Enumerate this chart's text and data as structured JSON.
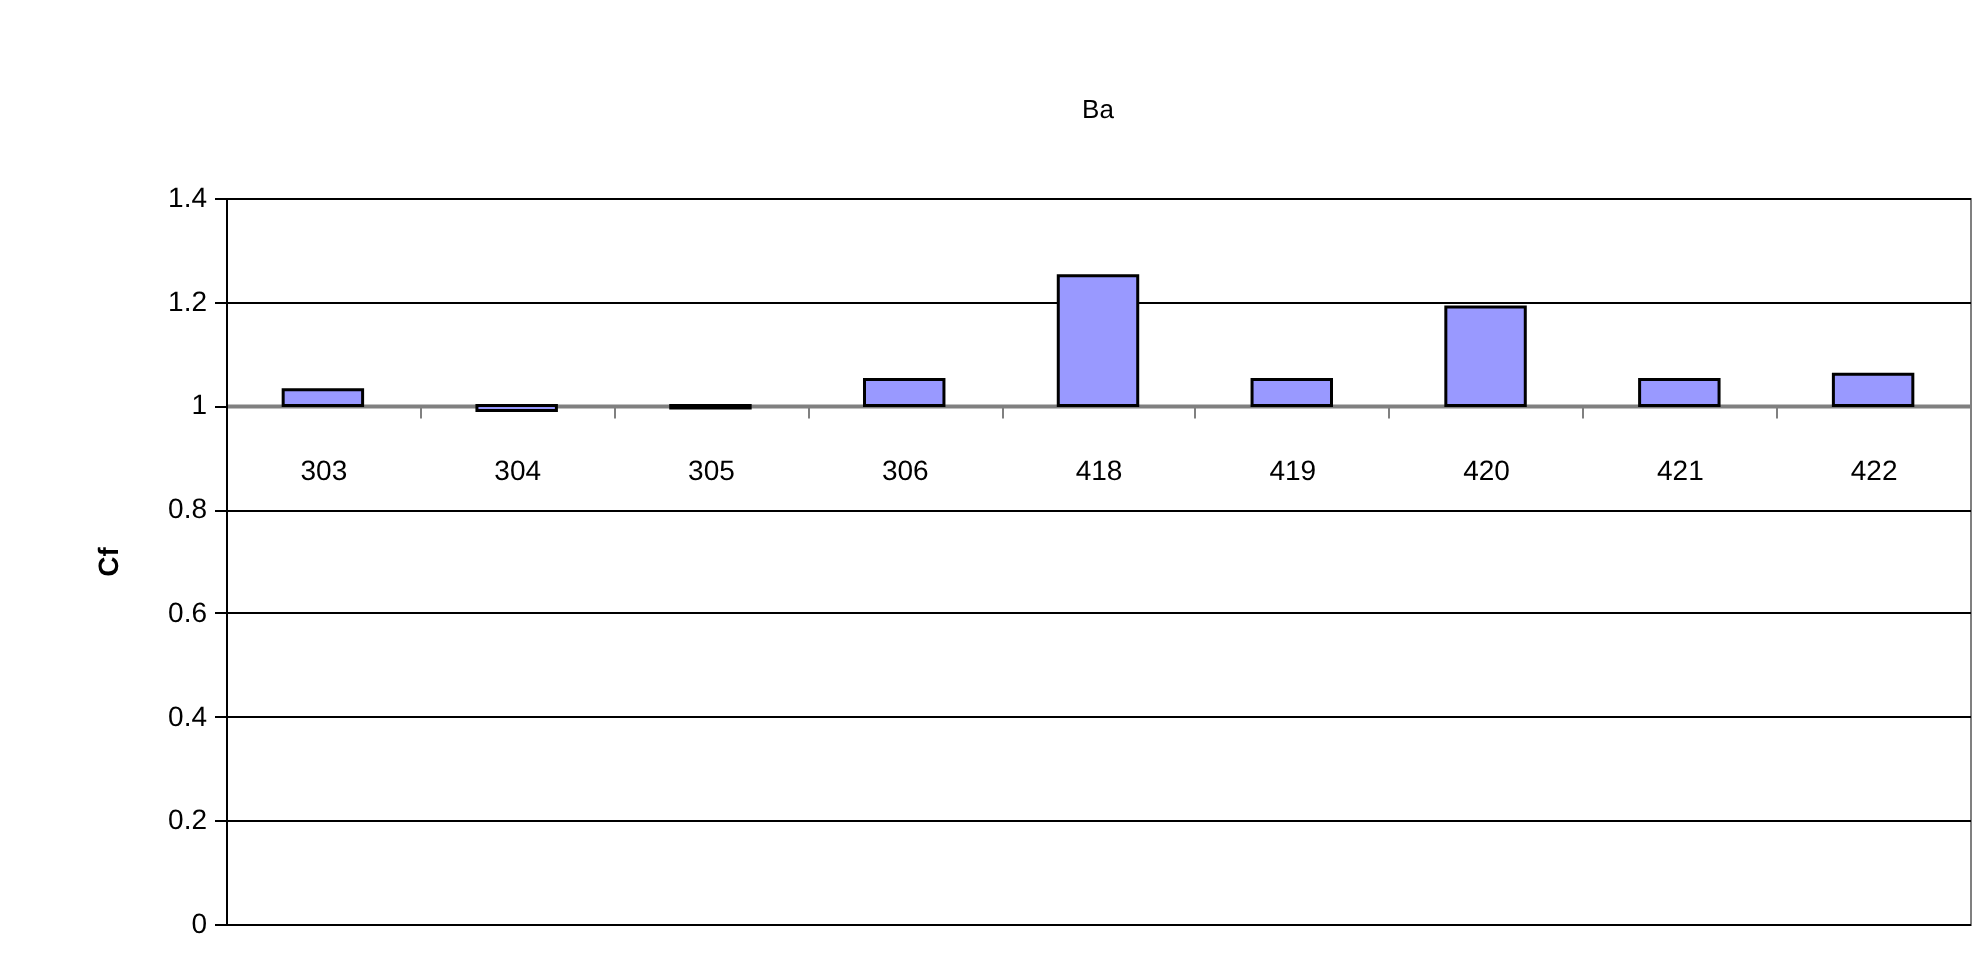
{
  "chart_data": {
    "type": "bar",
    "title": "Ba",
    "ylabel": "Cf",
    "categories": [
      "303",
      "304",
      "305",
      "306",
      "418",
      "419",
      "420",
      "421",
      "422"
    ],
    "base": [
      1,
      1,
      1,
      1,
      1,
      1,
      1,
      1,
      1
    ],
    "values": [
      0.03,
      -0.01,
      -0.005,
      0.05,
      0.25,
      0.05,
      0.19,
      0.05,
      0.06
    ],
    "color": "#9999ff",
    "ylim": [
      0,
      1.4
    ],
    "yticks": [
      0,
      0.2,
      0.4,
      0.6,
      0.8,
      1,
      1.2,
      1.4
    ],
    "grid": "y"
  }
}
